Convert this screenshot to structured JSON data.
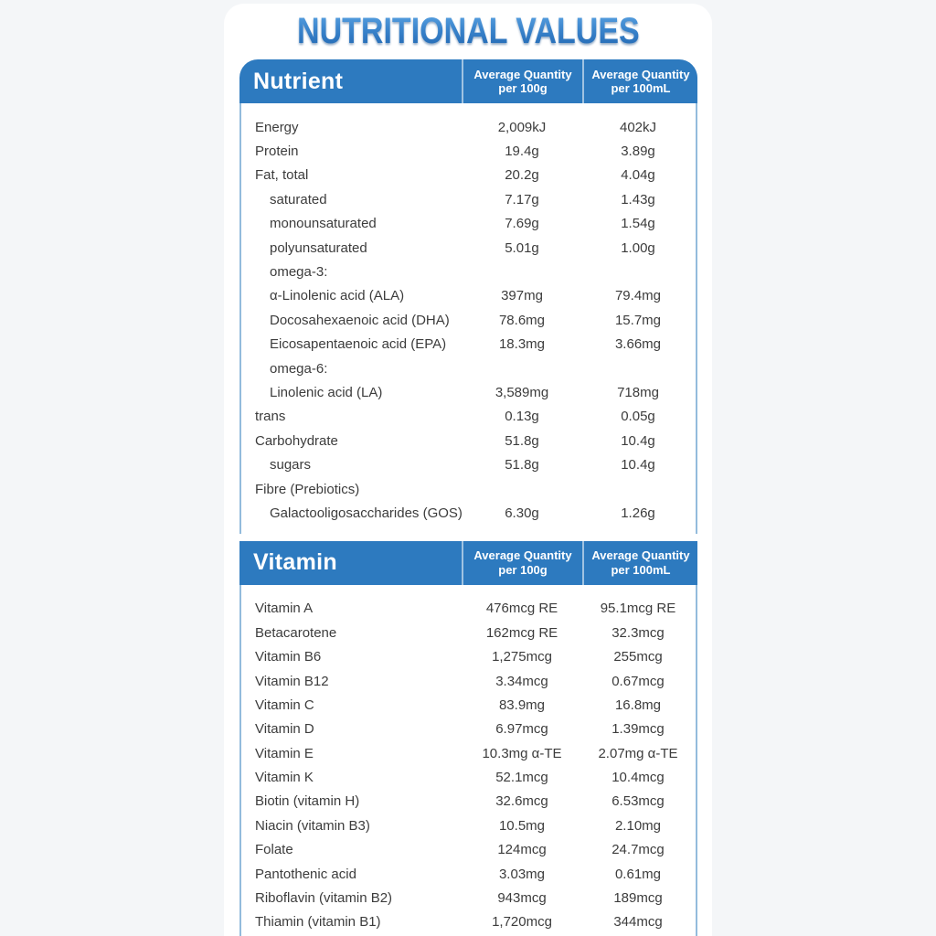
{
  "title": "NUTRITIONAL VALUES",
  "colors": {
    "header_blue": "#2d7abf",
    "title_blue_top": "#5ea6e4",
    "title_blue_bottom": "#1f64ae",
    "body_border_blue": "#93bbdc",
    "body_text": "#3c3c3c",
    "page_background": "#f4f6f8"
  },
  "sections": [
    {
      "name": "Nutrient",
      "columns": [
        {
          "line1": "Average Quantity",
          "line2": "per 100g"
        },
        {
          "line1": "Average Quantity",
          "line2": "per 100mL"
        }
      ],
      "rows": [
        {
          "label": "Energy",
          "indent": 0,
          "per100g": "2,009kJ",
          "per100ml": "402kJ"
        },
        {
          "label": "Protein",
          "indent": 0,
          "per100g": "19.4g",
          "per100ml": "3.89g"
        },
        {
          "label": "Fat, total",
          "indent": 0,
          "per100g": "20.2g",
          "per100ml": "4.04g"
        },
        {
          "label": "saturated",
          "indent": 1,
          "per100g": "7.17g",
          "per100ml": "1.43g"
        },
        {
          "label": "monounsaturated",
          "indent": 1,
          "per100g": "7.69g",
          "per100ml": "1.54g"
        },
        {
          "label": "polyunsaturated",
          "indent": 1,
          "per100g": "5.01g",
          "per100ml": "1.00g"
        },
        {
          "label": "omega-3:",
          "indent": 1,
          "per100g": "",
          "per100ml": ""
        },
        {
          "label": "α-Linolenic acid (ALA)",
          "indent": 1,
          "per100g": "397mg",
          "per100ml": "79.4mg"
        },
        {
          "label": "Docosahexaenoic acid (DHA)",
          "indent": 1,
          "per100g": "78.6mg",
          "per100ml": "15.7mg"
        },
        {
          "label": "Eicosapentaenoic acid (EPA)",
          "indent": 1,
          "per100g": "18.3mg",
          "per100ml": "3.66mg"
        },
        {
          "label": "omega-6:",
          "indent": 1,
          "per100g": "",
          "per100ml": ""
        },
        {
          "label": "Linolenic acid (LA)",
          "indent": 1,
          "per100g": "3,589mg",
          "per100ml": "718mg"
        },
        {
          "label": "trans",
          "indent": 0,
          "per100g": "0.13g",
          "per100ml": "0.05g"
        },
        {
          "label": "Carbohydrate",
          "indent": 0,
          "per100g": "51.8g",
          "per100ml": "10.4g"
        },
        {
          "label": "sugars",
          "indent": 1,
          "per100g": "51.8g",
          "per100ml": "10.4g"
        },
        {
          "label": "Fibre (Prebiotics)",
          "indent": 0,
          "per100g": "",
          "per100ml": ""
        },
        {
          "label": "Galactooligosaccharides (GOS)",
          "indent": 1,
          "per100g": "6.30g",
          "per100ml": "1.26g"
        }
      ]
    },
    {
      "name": "Vitamin",
      "columns": [
        {
          "line1": "Average Quantity",
          "line2": "per 100g"
        },
        {
          "line1": "Average Quantity",
          "line2": "per 100mL"
        }
      ],
      "rows": [
        {
          "label": "Vitamin A",
          "indent": 0,
          "per100g": "476mcg RE",
          "per100ml": "95.1mcg RE"
        },
        {
          "label": "Betacarotene",
          "indent": 0,
          "per100g": "162mcg RE",
          "per100ml": "32.3mcg"
        },
        {
          "label": "Vitamin B6",
          "indent": 0,
          "per100g": "1,275mcg",
          "per100ml": "255mcg"
        },
        {
          "label": "Vitamin B12",
          "indent": 0,
          "per100g": "3.34mcg",
          "per100ml": "0.67mcg"
        },
        {
          "label": "Vitamin C",
          "indent": 0,
          "per100g": "83.9mg",
          "per100ml": "16.8mg"
        },
        {
          "label": "Vitamin D",
          "indent": 0,
          "per100g": "6.97mcg",
          "per100ml": "1.39mcg"
        },
        {
          "label": "Vitamin E",
          "indent": 0,
          "per100g": "10.3mg α-TE",
          "per100ml": "2.07mg α-TE"
        },
        {
          "label": "Vitamin K",
          "indent": 0,
          "per100g": "52.1mcg",
          "per100ml": "10.4mcg"
        },
        {
          "label": "Biotin (vitamin H)",
          "indent": 0,
          "per100g": "32.6mcg",
          "per100ml": "6.53mcg"
        },
        {
          "label": "Niacin (vitamin B3)",
          "indent": 0,
          "per100g": "10.5mg",
          "per100ml": "2.10mg"
        },
        {
          "label": "Folate",
          "indent": 0,
          "per100g": "124mcg",
          "per100ml": "24.7mcg"
        },
        {
          "label": "Pantothenic acid",
          "indent": 0,
          "per100g": "3.03mg",
          "per100ml": "0.61mg"
        },
        {
          "label": "Riboflavin (vitamin B2)",
          "indent": 0,
          "per100g": "943mcg",
          "per100ml": "189mcg"
        },
        {
          "label": "Thiamin (vitamin B1)",
          "indent": 0,
          "per100g": "1,720mcg",
          "per100ml": "344mcg"
        }
      ]
    }
  ]
}
